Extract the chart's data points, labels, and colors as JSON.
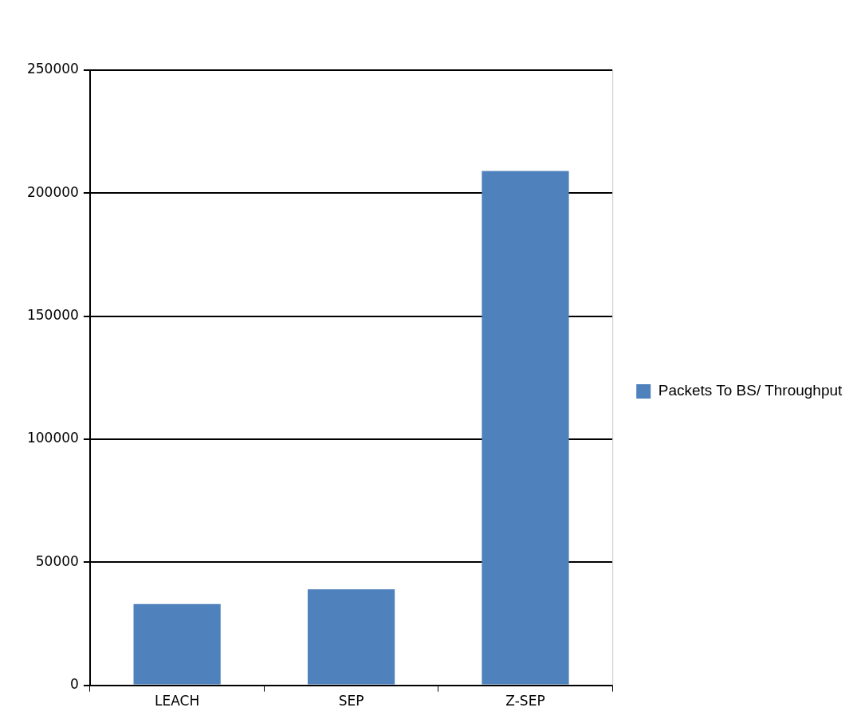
{
  "chart_data": {
    "type": "bar",
    "categories": [
      "LEACH",
      "SEP",
      "Z-SEP"
    ],
    "series": [
      {
        "name": "Packets To BS/ Throughput",
        "color": "#4f81bd",
        "values": [
          33000,
          39000,
          209000
        ]
      }
    ],
    "ylim": [
      0,
      250000
    ],
    "yticks": [
      0,
      50000,
      100000,
      150000,
      200000,
      250000
    ],
    "grid": "y",
    "legend": "right"
  }
}
